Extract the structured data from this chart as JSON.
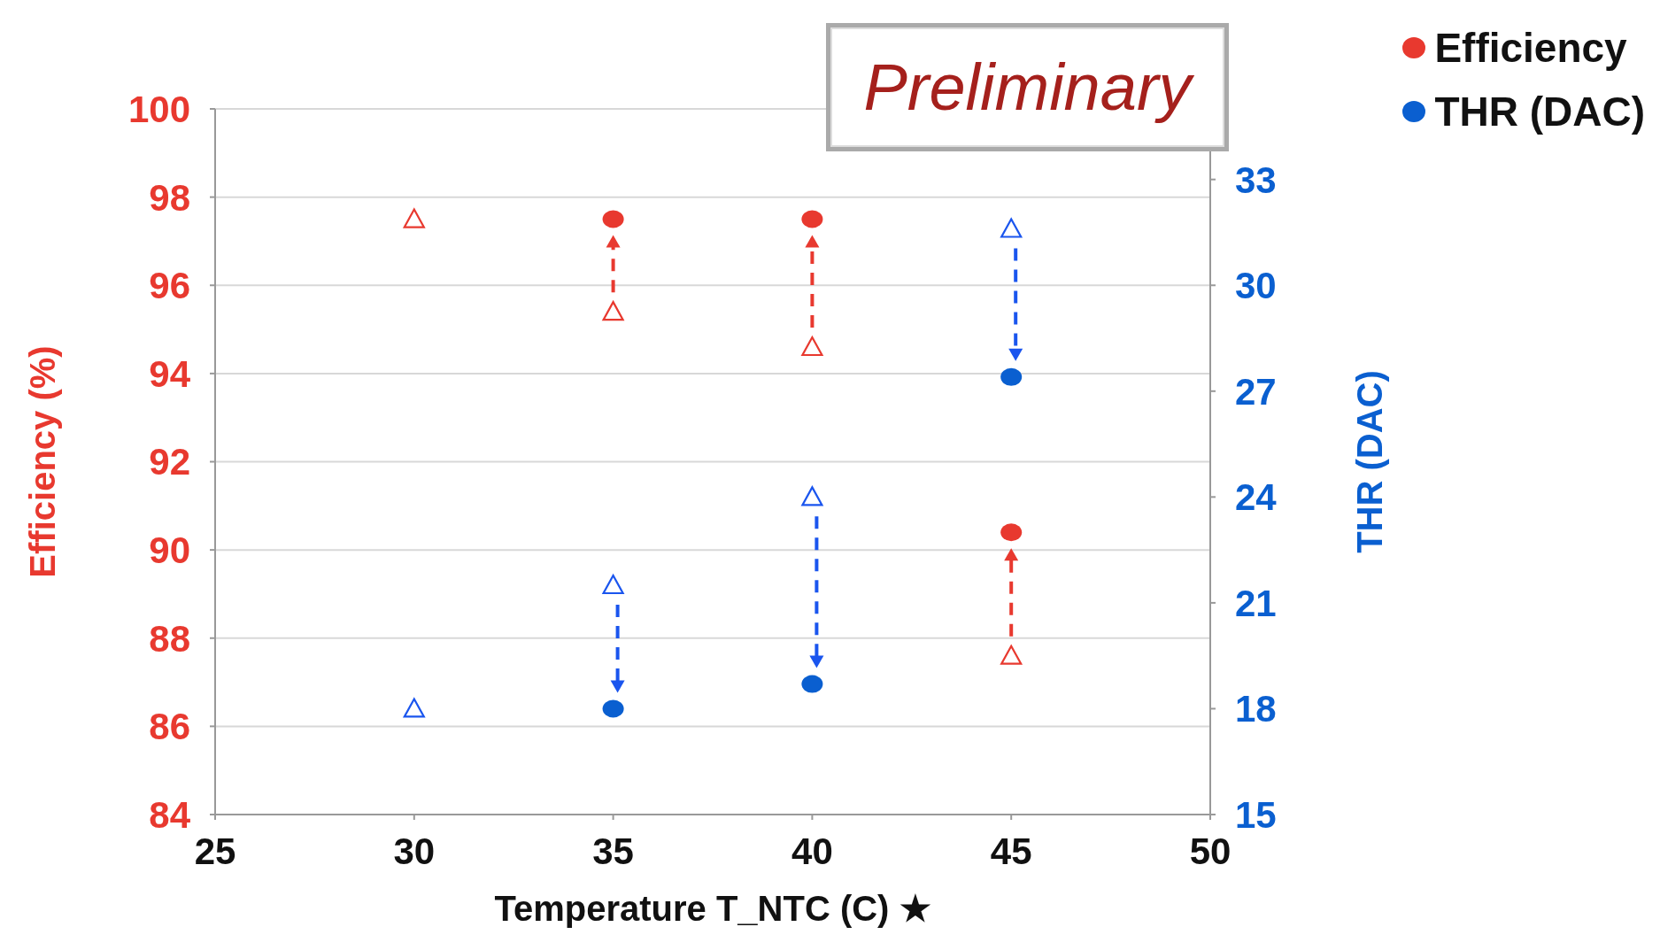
{
  "chart_data": {
    "type": "scatter",
    "xlabel": "Temperature T_NTC (C) ★",
    "ylabel": "Efficiency (%)",
    "y2label": "THR (DAC)",
    "annotations": [
      "Preliminary"
    ],
    "x": [
      30,
      35,
      40,
      45
    ],
    "series": [
      {
        "name": "Efficiency",
        "color": "#e8392f",
        "marker": "circle",
        "values": [
          null,
          97.5,
          97.5,
          90.4
        ]
      },
      {
        "name": "THR (DAC)",
        "color": "#0a5fd0",
        "marker": "circle",
        "axis": "y2",
        "values": [
          null,
          18,
          18.7,
          27.4
        ]
      },
      {
        "color": "#e8392f",
        "marker": "triangle",
        "values": [
          97.5,
          95.4,
          94.6,
          87.6
        ]
      },
      {
        "color": "#1a55ee",
        "marker": "triangle",
        "axis": "y2",
        "values": [
          18,
          21.5,
          24,
          31.6
        ]
      }
    ],
    "xlim": [
      25,
      50
    ],
    "xticks": [
      25,
      30,
      35,
      40,
      45,
      50
    ],
    "ylim": [
      84,
      100
    ],
    "yticks": [
      84,
      86,
      88,
      90,
      92,
      94,
      96,
      98,
      100
    ],
    "y2lim": [
      15,
      35
    ],
    "y2ticks": [
      15,
      18,
      21,
      24,
      27,
      30,
      33
    ],
    "grid": "y",
    "legend": "top right"
  }
}
